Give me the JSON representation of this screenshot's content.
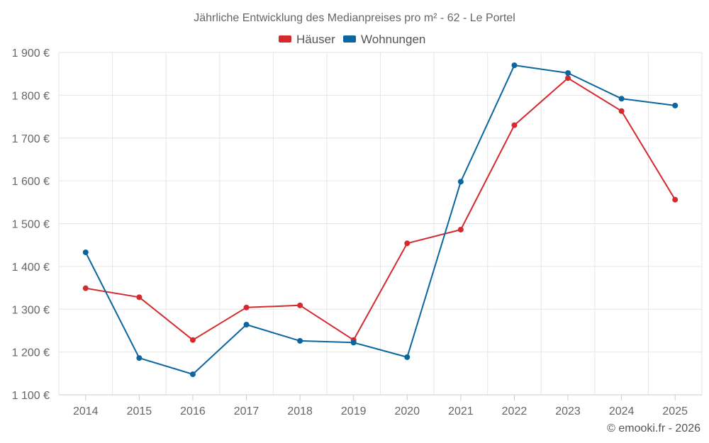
{
  "chart_data": {
    "type": "line",
    "title": "Jährliche Entwicklung des Medianpreises pro m² - 62 - Le Portel",
    "categories": [
      "2014",
      "2015",
      "2016",
      "2017",
      "2018",
      "2019",
      "2020",
      "2021",
      "2022",
      "2023",
      "2024",
      "2025"
    ],
    "series": [
      {
        "name": "Häuser",
        "color": "#d42a2e",
        "values": [
          1349,
          1328,
          1228,
          1304,
          1309,
          1228,
          1454,
          1486,
          1730,
          1840,
          1763,
          1556
        ]
      },
      {
        "name": "Wohnungen",
        "color": "#0a669e",
        "values": [
          1433,
          1186,
          1148,
          1264,
          1226,
          1222,
          1188,
          1598,
          1870,
          1852,
          1792,
          1776
        ]
      }
    ],
    "ylim": [
      1100,
      1900
    ],
    "yticks": [
      1100,
      1200,
      1300,
      1400,
      1500,
      1600,
      1700,
      1800,
      1900
    ],
    "ytick_labels": [
      "1 100 €",
      "1 200 €",
      "1 300 €",
      "1 400 €",
      "1 500 €",
      "1 600 €",
      "1 700 €",
      "1 800 €",
      "1 900 €"
    ],
    "xlabel": "",
    "ylabel": "",
    "grid": true,
    "legend_position": "top-center"
  },
  "credit": "© emooki.fr - 2026"
}
